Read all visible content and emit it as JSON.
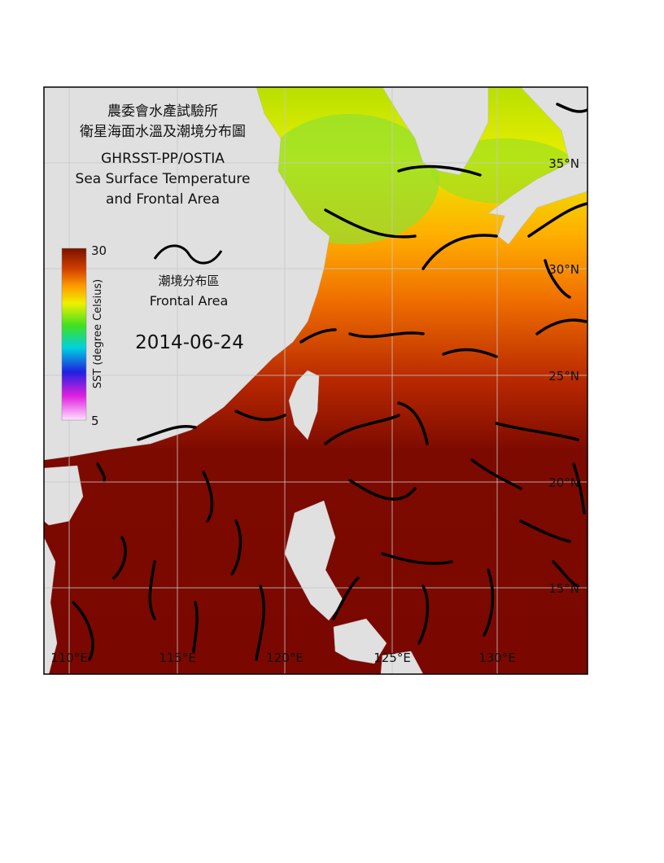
{
  "title": {
    "lines": [
      "農委會水產試驗所",
      "衛星海面水溫及潮境分布圖",
      "GHRSST-PP/OSTIA",
      "Sea Surface Temperature",
      "and Frontal Area"
    ]
  },
  "colorbar": {
    "max": 30,
    "min": 5,
    "label": "SST (degree Celsius)"
  },
  "front_legend": {
    "label_zh": "潮境分布區",
    "label_en": "Frontal Area"
  },
  "date": "2014-06-24",
  "latitude_labels": [
    "35°N",
    "30°N",
    "25°N",
    "20°N",
    "15°N"
  ],
  "longitude_labels": [
    "110°E",
    "115°E",
    "120°E",
    "125°E",
    "130°E"
  ]
}
